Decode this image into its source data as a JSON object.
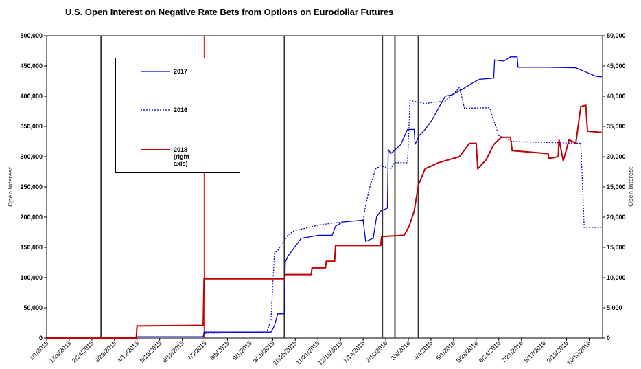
{
  "chart_data": {
    "type": "line",
    "title": "U.S. Open Interest on Negative Rate Bets from Options on Eurodollar Futures",
    "y_label": "Open Interest",
    "y2_label": "Open Interest",
    "xlim": [
      "1/1/2015",
      "10/26/2016"
    ],
    "xticks": [
      "1/1/2015",
      "1/28/2015",
      "2/24/2015",
      "3/23/2015",
      "4/19/2015",
      "5/16/2015",
      "6/12/2015",
      "7/9/2015",
      "8/5/2015",
      "9/1/2015",
      "9/28/2015",
      "10/25/2015",
      "11/21/2015",
      "12/18/2015",
      "1/14/2016",
      "2/10/2016",
      "3/8/2016",
      "4/4/2016",
      "5/1/2016",
      "5/28/2016",
      "6/24/2016",
      "7/21/2016",
      "8/17/2016",
      "9/13/2016",
      "10/10/2016"
    ],
    "ylim": [
      0,
      500000
    ],
    "yticks": [
      0,
      {
        "value": 50000,
        "label": "50,000"
      },
      {
        "value": 100000,
        "label": "100,000"
      },
      {
        "value": 150000,
        "label": "150,000"
      },
      {
        "value": 200000,
        "label": "200,000"
      },
      {
        "value": 250000,
        "label": "250,000"
      },
      {
        "value": 300000,
        "label": "300,000"
      },
      {
        "value": 350000,
        "label": "350,000"
      },
      {
        "value": 400000,
        "label": "400,000"
      },
      {
        "value": 450000,
        "label": "450,000"
      },
      {
        "value": 500000,
        "label": "500,000"
      }
    ],
    "y2lim": [
      0,
      50000
    ],
    "y2ticks": [
      0,
      {
        "value": 5000,
        "label": "5,000"
      },
      {
        "value": 10000,
        "label": "10,000"
      },
      {
        "value": 15000,
        "label": "15,000"
      },
      {
        "value": 20000,
        "label": "20,000"
      },
      {
        "value": 25000,
        "label": "25,000"
      },
      {
        "value": 30000,
        "label": "30,000"
      },
      {
        "value": 35000,
        "label": "35,000"
      },
      {
        "value": 40000,
        "label": "40,000"
      },
      {
        "value": 45000,
        "label": "45,000"
      },
      {
        "value": 50000,
        "label": "50,000"
      }
    ],
    "vlines": [
      {
        "x": "3/7/2015",
        "color": "#333333"
      },
      {
        "x": "7/8/2015",
        "color": "#e00000"
      },
      {
        "x": "10/12/2015",
        "color": "#333333"
      },
      {
        "x": "2/6/2016",
        "color": "#333333"
      },
      {
        "x": "2/21/2016",
        "color": "#333333"
      },
      {
        "x": "3/20/2016",
        "color": "#333333"
      }
    ],
    "series": [
      {
        "name": "2017",
        "color": "#0000cc",
        "style": "solid",
        "x": [
          "1/1/2015",
          "4/18/2015",
          "4/19/2015",
          "7/7/2015",
          "7/8/2015",
          "9/26/2015",
          "9/30/2015",
          "10/4/2015",
          "10/12/2015",
          "10/13/2015",
          "10/16/2015",
          "10/24/2015",
          "11/1/2015",
          "11/22/2015",
          "12/8/2015",
          "12/12/2015",
          "12/21/2015",
          "1/14/2016",
          "1/17/2016",
          "1/26/2016",
          "1/30/2016",
          "2/4/2016",
          "2/12/2016",
          "2/13/2016",
          "2/16/2016",
          "2/28/2016",
          "3/7/2016",
          "3/15/2016",
          "3/16/2016",
          "3/21/2016",
          "3/28/2016",
          "4/5/2016",
          "4/13/2016",
          "4/21/2016",
          "4/29/2016",
          "5/12/2016",
          "5/24/2016",
          "6/1/2016",
          "6/18/2016",
          "6/19/2016",
          "6/30/2016",
          "7/8/2016",
          "7/16/2016",
          "7/17/2016",
          "8/22/2016",
          "9/24/2016",
          "10/6/2016",
          "10/18/2016",
          "10/25/2016"
        ],
        "values": [
          0,
          0,
          2000,
          2000,
          10000,
          10000,
          20000,
          40000,
          40000,
          125000,
          135000,
          150000,
          165000,
          170000,
          170000,
          185000,
          192000,
          195000,
          160000,
          165000,
          200000,
          210000,
          215000,
          312000,
          305000,
          320000,
          345000,
          345000,
          320000,
          335000,
          345000,
          360000,
          380000,
          400000,
          402000,
          412000,
          422000,
          428000,
          430000,
          460000,
          458000,
          465000,
          465000,
          448000,
          448000,
          447000,
          440000,
          433000,
          432000
        ]
      },
      {
        "name": "2016",
        "color": "#0000cc",
        "style": "dotted",
        "x": [
          "1/1/2015",
          "4/18/2015",
          "4/19/2015",
          "7/7/2015",
          "7/8/2015",
          "9/21/2015",
          "9/26/2015",
          "9/30/2015",
          "10/4/2015",
          "10/16/2015",
          "10/24/2015",
          "11/1/2015",
          "11/22/2015",
          "12/21/2015",
          "1/14/2016",
          "1/17/2016",
          "1/22/2016",
          "1/29/2016",
          "2/4/2016",
          "2/16/2016",
          "2/20/2016",
          "3/7/2016",
          "3/10/2016",
          "3/28/2016",
          "4/21/2016",
          "5/4/2016",
          "5/8/2016",
          "5/14/2016",
          "6/13/2016",
          "6/24/2016",
          "7/10/2016",
          "9/30/2016",
          "10/4/2016",
          "10/25/2016"
        ],
        "values": [
          0,
          0,
          2000,
          2000,
          8000,
          10000,
          30000,
          140000,
          145000,
          170000,
          178000,
          180000,
          187000,
          192000,
          195000,
          220000,
          250000,
          280000,
          285000,
          280000,
          290000,
          290000,
          393000,
          388000,
          392000,
          408000,
          415000,
          380000,
          381000,
          335000,
          325000,
          322000,
          183000,
          183000
        ]
      },
      {
        "name": "2018 (right axis)",
        "color": "#c00000",
        "style": "solid",
        "axis": "y2",
        "x": [
          "1/1/2015",
          "4/18/2015",
          "4/19/2015",
          "7/7/2015",
          "7/8/2015",
          "10/12/2015",
          "10/13/2015",
          "11/13/2015",
          "11/14/2015",
          "11/30/2015",
          "12/1/2015",
          "12/11/2015",
          "12/12/2015",
          "2/4/2016",
          "2/5/2016",
          "3/3/2016",
          "3/9/2016",
          "3/15/2016",
          "3/20/2016",
          "3/28/2016",
          "4/13/2016",
          "5/8/2016",
          "5/20/2016",
          "5/28/2016",
          "5/30/2016",
          "6/9/2016",
          "6/18/2016",
          "6/27/2016",
          "7/8/2016",
          "7/10/2016",
          "8/22/2016",
          "8/23/2016",
          "9/3/2016",
          "9/4/2016",
          "9/9/2016",
          "9/16/2016",
          "9/24/2016",
          "9/30/2016",
          "10/6/2016",
          "10/8/2016",
          "10/25/2016"
        ],
        "values": [
          0,
          0,
          2000,
          2100,
          9800,
          9800,
          10500,
          10500,
          11600,
          11600,
          12700,
          12700,
          15300,
          15300,
          16800,
          17000,
          18500,
          21000,
          25300,
          28000,
          29000,
          30000,
          32200,
          32200,
          28000,
          29500,
          32000,
          33200,
          33200,
          31000,
          30500,
          29700,
          30000,
          32800,
          29300,
          32800,
          32200,
          38300,
          38500,
          34200,
          34000
        ]
      }
    ]
  }
}
